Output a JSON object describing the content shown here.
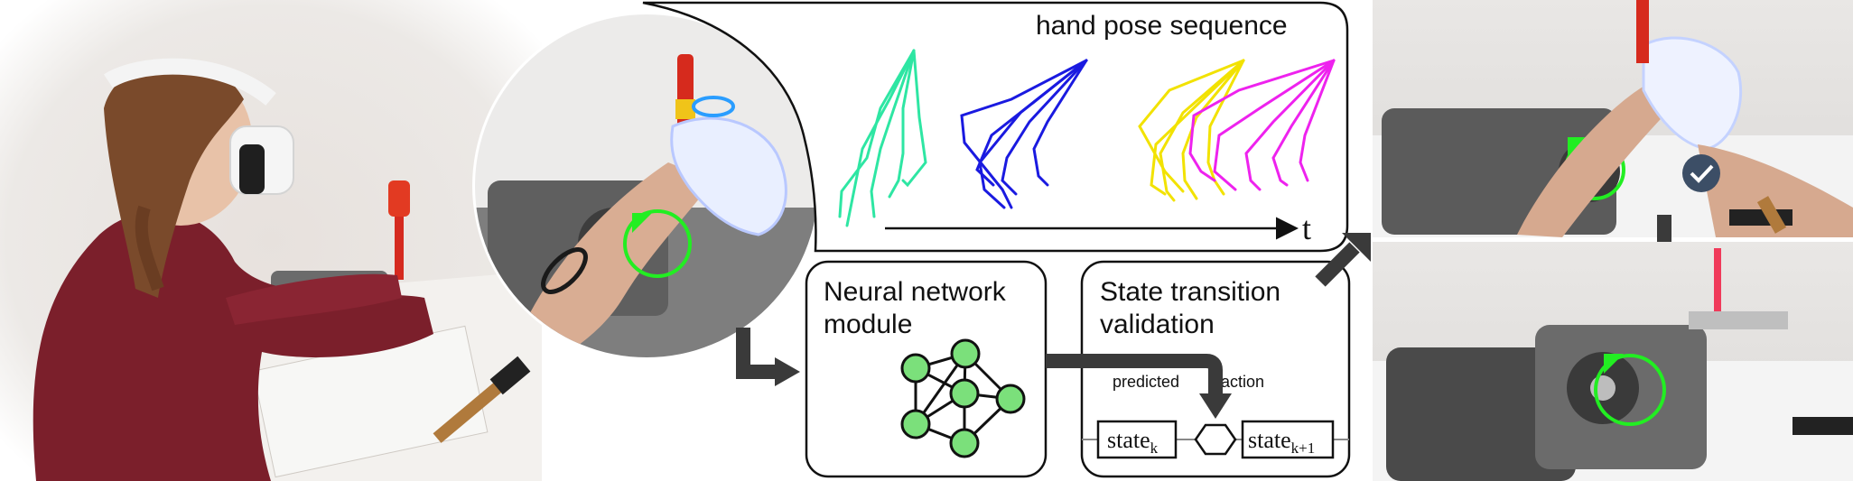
{
  "panels": {
    "hand_pose": {
      "title": "hand pose sequence",
      "time_axis": "t"
    },
    "neural_network": {
      "title_line1": "Neural network",
      "title_line2": "module"
    },
    "state_transition": {
      "title_line1": "State transition",
      "title_line2": "validation",
      "predicted_label": "predicted",
      "action_label": "action",
      "state_current": "state",
      "state_current_sub": "k",
      "state_next": "state",
      "state_next_sub": "k+1"
    }
  },
  "colors": {
    "pose_1": "#2ee6a3",
    "pose_2": "#1a1ae0",
    "pose_3": "#f2e200",
    "pose_4": "#ee22ee",
    "nn_node": "#7be07b",
    "ring_green": "#22ee22",
    "arrow": "#3a3a3a"
  },
  "icons": [
    "vr-headset-user-photo",
    "hand-tracking-closeup-photo",
    "engine-assembly-photo",
    "checkmark-icon",
    "down-arrow-icon"
  ]
}
